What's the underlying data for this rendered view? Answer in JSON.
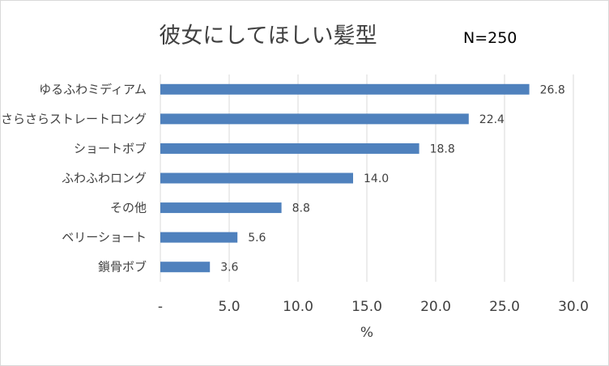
{
  "chart_data": {
    "type": "bar",
    "orientation": "horizontal",
    "title": "彼女にしてほしい髪型",
    "annotation": "N=250",
    "xlabel": "%",
    "ylabel": "",
    "xlim": [
      0,
      30
    ],
    "x_ticks": [
      "-",
      "5.0",
      "10.0",
      "15.0",
      "20.0",
      "25.0",
      "30.0"
    ],
    "categories": [
      "ゆるふわミディアム",
      "さらさらストレートロング",
      "ショートボブ",
      "ふわふわロング",
      "その他",
      "ベリーショート",
      "鎖骨ボブ"
    ],
    "values": [
      26.8,
      22.4,
      18.8,
      14.0,
      8.8,
      5.6,
      3.6
    ],
    "value_labels": [
      "26.8",
      "22.4",
      "18.8",
      "14.0",
      "8.8",
      "5.6",
      "3.6"
    ],
    "grid": true,
    "bar_color": "#4f81bd",
    "grid_color": "#d9d9d9"
  }
}
